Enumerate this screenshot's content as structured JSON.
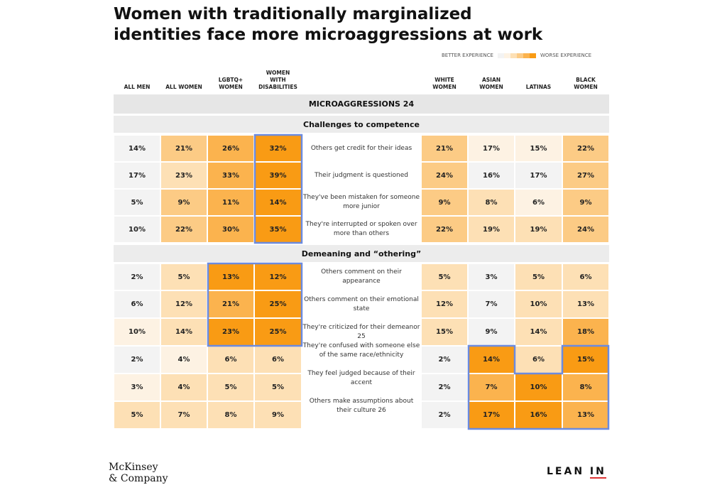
{
  "chart_data": {
    "type": "heatmap",
    "title": "Women with traditionally marginalized identities face more microaggressions at work",
    "legend": {
      "better": "BETTER EXPERIENCE",
      "worse": "WORSE EXPERIENCE",
      "placement": "top-right"
    },
    "columns_left": [
      "ALL MEN",
      "ALL WOMEN",
      "LGBTQ+ WOMEN",
      "WOMEN WITH DISABILITIES"
    ],
    "columns_right": [
      "WHITE WOMEN",
      "ASIAN WOMEN",
      "LATINAS",
      "BLACK WOMEN"
    ],
    "header": "MICROAGGRESSIONS 24",
    "sections": [
      {
        "title": "Challenges to competence",
        "rows": [
          {
            "label": "Others get credit for their ideas",
            "left": [
              "14%",
              "21%",
              "26%",
              "32%"
            ],
            "right": [
              "21%",
              "17%",
              "15%",
              "22%"
            ],
            "levels": [
              0,
              3,
              4,
              5,
              3,
              1,
              1,
              3
            ]
          },
          {
            "label": "Their judgment is questioned",
            "left": [
              "17%",
              "23%",
              "33%",
              "39%"
            ],
            "right": [
              "24%",
              "16%",
              "17%",
              "27%"
            ],
            "levels": [
              0,
              2,
              4,
              5,
              3,
              0,
              0,
              3
            ]
          },
          {
            "label": "They've been mistaken for someone more junior",
            "left": [
              "5%",
              "9%",
              "11%",
              "14%"
            ],
            "right": [
              "9%",
              "8%",
              "6%",
              "9%"
            ],
            "levels": [
              0,
              3,
              4,
              5,
              3,
              2,
              1,
              3
            ]
          },
          {
            "label": "They're interrupted or spoken over more than others",
            "left": [
              "10%",
              "22%",
              "30%",
              "35%"
            ],
            "right": [
              "22%",
              "19%",
              "19%",
              "24%"
            ],
            "levels": [
              0,
              3,
              4,
              5,
              3,
              2,
              2,
              3
            ]
          }
        ]
      },
      {
        "title": "Demeaning and “othering”",
        "rows": [
          {
            "label": "Others comment on their appearance",
            "left": [
              "2%",
              "5%",
              "13%",
              "12%"
            ],
            "right": [
              "5%",
              "3%",
              "5%",
              "6%"
            ],
            "levels": [
              0,
              2,
              5,
              5,
              2,
              0,
              2,
              2
            ]
          },
          {
            "label": "Others comment on their emotional state",
            "left": [
              "6%",
              "12%",
              "21%",
              "25%"
            ],
            "right": [
              "12%",
              "7%",
              "10%",
              "13%"
            ],
            "levels": [
              0,
              2,
              4,
              5,
              2,
              0,
              2,
              2
            ]
          },
          {
            "label": "They're criticized for their demeanor 25",
            "left": [
              "10%",
              "14%",
              "23%",
              "25%"
            ],
            "right": [
              "15%",
              "9%",
              "14%",
              "18%"
            ],
            "levels": [
              1,
              2,
              5,
              5,
              2,
              0,
              2,
              4
            ]
          },
          {
            "label": "They're confused with someone else of the same race/ethnicity",
            "left": [
              "2%",
              "4%",
              "6%",
              "6%"
            ],
            "right": [
              "2%",
              "14%",
              "6%",
              "15%"
            ],
            "levels": [
              0,
              1,
              2,
              2,
              0,
              5,
              2,
              5
            ]
          },
          {
            "label": "They feel judged because of their accent",
            "left": [
              "3%",
              "4%",
              "5%",
              "5%"
            ],
            "right": [
              "2%",
              "7%",
              "10%",
              "8%"
            ],
            "levels": [
              1,
              2,
              2,
              2,
              0,
              4,
              5,
              4
            ]
          },
          {
            "label": "Others make assumptions about their culture 26",
            "left": [
              "5%",
              "7%",
              "8%",
              "9%"
            ],
            "right": [
              "2%",
              "17%",
              "16%",
              "13%"
            ],
            "levels": [
              2,
              2,
              2,
              2,
              0,
              5,
              5,
              4
            ]
          }
        ]
      }
    ]
  },
  "palette": [
    "#f3f3f3",
    "#fdf2e3",
    "#fde0b5",
    "#fccb85",
    "#fbb34e",
    "#f99b14"
  ],
  "highlight": "#6b8be0",
  "logos": {
    "mckinsey": "McKinsey & Company",
    "leanin": "LEAN IN"
  }
}
